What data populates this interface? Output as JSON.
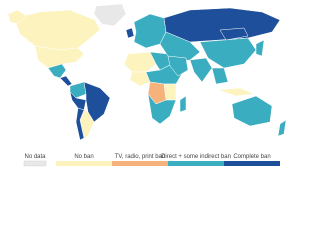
{
  "legend": {
    "items": [
      {
        "name": "No data",
        "color": "#e8e8e8"
      },
      {
        "name": "No ban",
        "color": "#fdf3bf"
      },
      {
        "name": "TV, radio, print ban",
        "color": "#f5b27a"
      },
      {
        "name": "Direct + some indirect ban",
        "color": "#3aaec0"
      },
      {
        "name": "Complete ban",
        "color": "#1d4f9a"
      }
    ]
  }
}
